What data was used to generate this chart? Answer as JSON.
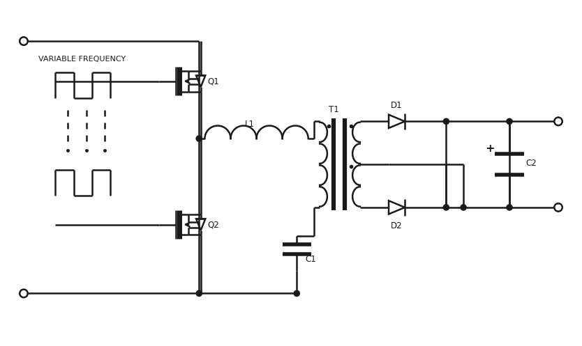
{
  "bg": "#ffffff",
  "lc": "#1a1a1a",
  "lw": 1.8,
  "fw": 8.34,
  "fh": 4.97,
  "fs": 8.5,
  "var_freq": "VARIABLE FREQUENCY",
  "xlim": [
    0,
    100
  ],
  "ylim": [
    0,
    60
  ]
}
